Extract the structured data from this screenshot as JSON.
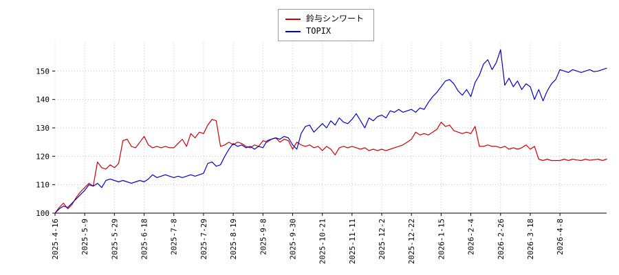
{
  "chart_data": {
    "type": "line",
    "title": "",
    "background": "#ffffff",
    "grid": true,
    "grid_color": "#c0c0c0",
    "axis_color": "#000000",
    "legend_position": "top-center",
    "ylim": [
      100,
      160
    ],
    "yticks": [
      100,
      110,
      120,
      130,
      140,
      150
    ],
    "tick_every": 7,
    "x_tick_labels": [
      "2025-4-16",
      "2025-5-9",
      "2025-5-29",
      "2025-6-18",
      "2025-7-8",
      "2025-7-29",
      "2025-8-19",
      "2025-9-8",
      "2025-9-30",
      "2025-10-21",
      "2025-11-11",
      "2025-12-2",
      "2025-12-22",
      "2026-1-15",
      "2026-2-4",
      "2026-2-26",
      "2026-3-18",
      "2026-4-8"
    ],
    "series": [
      {
        "name": "鈴与シンワート",
        "color": "#cc0000",
        "values": [
          100,
          102,
          103.5,
          101.5,
          103,
          105.5,
          107.5,
          109,
          110.5,
          109.5,
          118,
          116,
          115.5,
          117,
          116,
          117.5,
          125.5,
          126,
          123.5,
          123,
          125,
          127,
          124,
          123,
          123.5,
          123,
          123.5,
          123,
          123,
          124.5,
          126,
          123.5,
          128,
          126.5,
          128.5,
          128,
          131,
          133,
          132.5,
          123.5,
          124,
          125,
          124,
          125,
          124.5,
          123.5,
          123,
          124,
          123.5,
          125.5,
          125,
          126,
          126.5,
          125,
          126,
          125.5,
          122.5,
          125,
          124,
          123.5,
          124,
          123,
          123.5,
          122,
          123.5,
          122.5,
          120.5,
          123,
          123.5,
          123,
          123.5,
          123,
          122.5,
          123,
          122,
          122.5,
          122,
          122.5,
          122,
          122.5,
          123,
          123.5,
          124,
          125,
          126,
          128.5,
          127.5,
          128,
          127.5,
          128.5,
          129.5,
          132,
          130.5,
          131,
          129,
          128.5,
          128,
          128.5,
          128,
          130.5,
          123.5,
          123.5,
          124,
          123.5,
          123.5,
          123,
          123.5,
          122.5,
          123,
          122.5,
          123,
          124,
          122.5,
          123.5,
          119,
          118.5,
          119,
          118.5,
          118.5,
          118.5,
          119,
          118.5,
          119,
          118.7,
          118.5,
          119,
          118.6,
          118.8,
          119,
          118.5,
          119
        ]
      },
      {
        "name": "TOPIX",
        "color": "#0000cc",
        "values": [
          100,
          101.5,
          102.5,
          102,
          103.5,
          105,
          106.5,
          108,
          110,
          109.5,
          110.5,
          109,
          111.5,
          112,
          111.5,
          111,
          111.5,
          111,
          110.5,
          111,
          111.5,
          111,
          112,
          113.5,
          112.5,
          113,
          113.5,
          113,
          112.5,
          113,
          112.5,
          113,
          113.5,
          113,
          113.5,
          114,
          117.5,
          118,
          116.5,
          117,
          120,
          122.5,
          124.5,
          123.5,
          124,
          123,
          123.5,
          122.5,
          123.5,
          123,
          125.5,
          126,
          126.5,
          126,
          127,
          126.5,
          124,
          122.5,
          128,
          130.5,
          131,
          128.5,
          130,
          131.5,
          130,
          132.5,
          131,
          133.5,
          132,
          131.5,
          133,
          135,
          132.5,
          130,
          133.5,
          132.5,
          134,
          134.5,
          133.5,
          136,
          135.5,
          136.5,
          135.5,
          136,
          136.5,
          135.5,
          137,
          136.5,
          139,
          141,
          142.5,
          144.5,
          146.5,
          147,
          145.5,
          143,
          141.5,
          143.5,
          141,
          146,
          148.5,
          152.5,
          154,
          150.5,
          153,
          157.5,
          145,
          147.5,
          144.5,
          146.5,
          143.5,
          145.5,
          144.5,
          140,
          143.5,
          139.5,
          143,
          145.5,
          147,
          150.5,
          150,
          149.5,
          150.5,
          150,
          149.5,
          150,
          150.5,
          149.8,
          150,
          150.5,
          151
        ]
      }
    ]
  },
  "legend": {
    "items": [
      {
        "label": "鈴与シンワート",
        "color": "#cc0000"
      },
      {
        "label": "TOPIX",
        "color": "#0000cc"
      }
    ]
  }
}
